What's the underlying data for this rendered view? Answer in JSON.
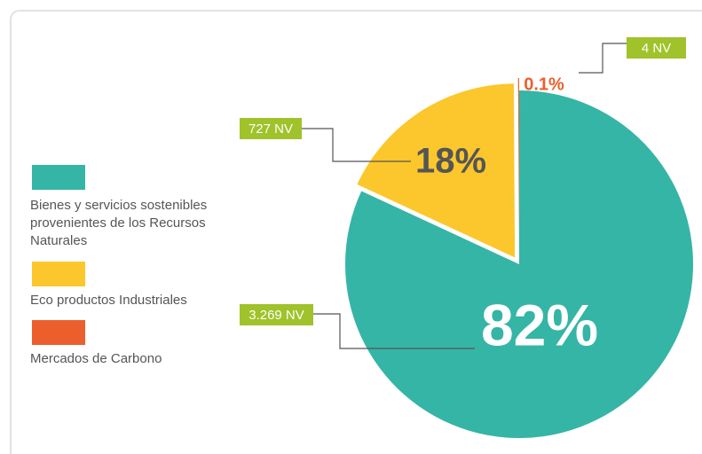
{
  "chart_data": {
    "type": "pie",
    "categories": [
      "Bienes y servicios sostenibles provenientes de los Recursos Naturales",
      "Eco productos Industriales",
      "Mercados de Carbono"
    ],
    "values": [
      82,
      18,
      0.1
    ],
    "value_labels": [
      "82%",
      "18%",
      "0.1%"
    ],
    "colors": [
      "#35b5a6",
      "#fcc72c",
      "#ec5f2d"
    ],
    "annotations": [
      "3.269 NV",
      "727 NV",
      "4 NV"
    ],
    "legend": "left"
  }
}
